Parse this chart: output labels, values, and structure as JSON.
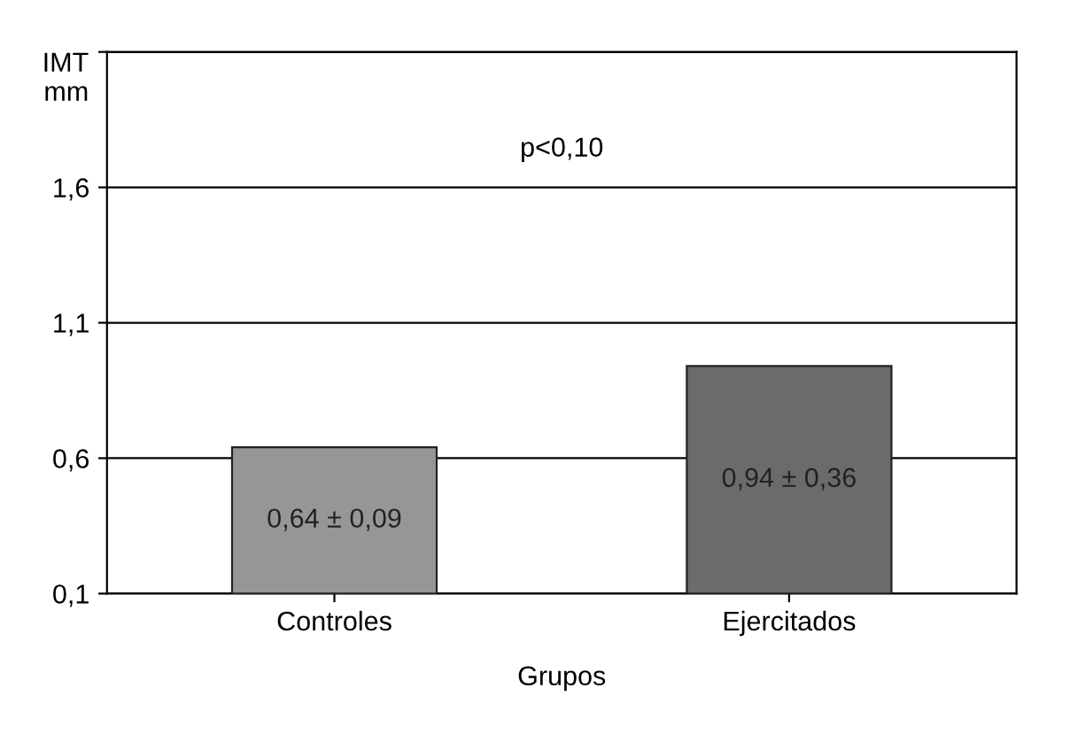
{
  "chart_data": {
    "type": "bar",
    "ylabel": "IMT\nmm",
    "xlabel": "Grupos",
    "categories": [
      "Controles",
      "Ejercitados"
    ],
    "values": [
      0.64,
      0.94
    ],
    "colors": [
      "#969696",
      "#6b6b6b"
    ],
    "value_labels": [
      "0,64 ± 0,09",
      "0,94 ± 0,36"
    ],
    "annotations": [
      "p<0,10"
    ],
    "ylim": [
      0.1,
      2.1
    ],
    "yticks": [
      {
        "value": 0.1,
        "label": "0,1"
      },
      {
        "value": 0.6,
        "label": "0,6"
      },
      {
        "value": 1.1,
        "label": "1,1"
      },
      {
        "value": 1.6,
        "label": "1,6"
      },
      {
        "value": 2.1,
        "label": null
      }
    ],
    "grid": "y",
    "legend": false
  }
}
